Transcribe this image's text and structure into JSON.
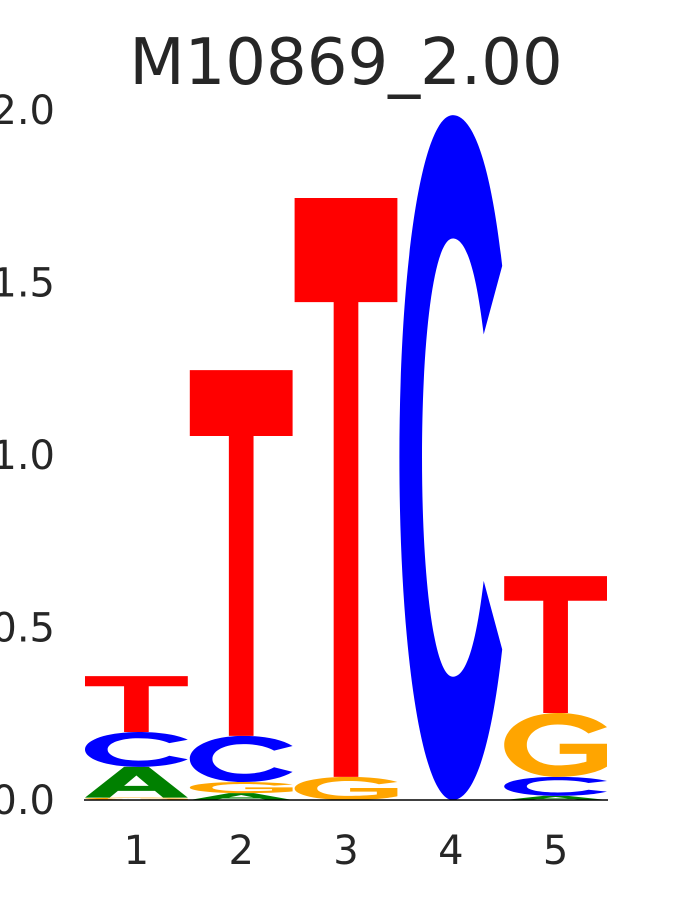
{
  "chart_data": {
    "type": "sequence-logo",
    "title": "M10869_2.00",
    "xlabel": "",
    "ylabel": "",
    "ylim": [
      0,
      2.0
    ],
    "y_ticks": [
      "0.0",
      "0.5",
      "1.0",
      "1.5",
      "2.0"
    ],
    "categories": [
      "1",
      "2",
      "3",
      "4",
      "5"
    ],
    "colors": {
      "A": "#008000",
      "C": "#0000ff",
      "G": "#ffa500",
      "T": "#ff0000"
    },
    "grid": false,
    "positions": [
      {
        "label": "1",
        "letters": [
          {
            "base": "G",
            "height": 0.007
          },
          {
            "base": "A",
            "height": 0.089
          },
          {
            "base": "C",
            "height": 0.101
          },
          {
            "base": "T",
            "height": 0.162
          }
        ]
      },
      {
        "label": "2",
        "letters": [
          {
            "base": "A",
            "height": 0.02
          },
          {
            "base": "G",
            "height": 0.032
          },
          {
            "base": "C",
            "height": 0.134
          },
          {
            "base": "T",
            "height": 1.06
          }
        ]
      },
      {
        "label": "3",
        "letters": [
          {
            "base": "G",
            "height": 0.067
          },
          {
            "base": "T",
            "height": 1.678
          }
        ]
      },
      {
        "label": "4",
        "letters": [
          {
            "base": "C",
            "height": 1.985
          }
        ]
      },
      {
        "label": "5",
        "letters": [
          {
            "base": "A",
            "height": 0.012
          },
          {
            "base": "C",
            "height": 0.055
          },
          {
            "base": "G",
            "height": 0.185
          },
          {
            "base": "T",
            "height": 0.397
          }
        ]
      }
    ]
  }
}
